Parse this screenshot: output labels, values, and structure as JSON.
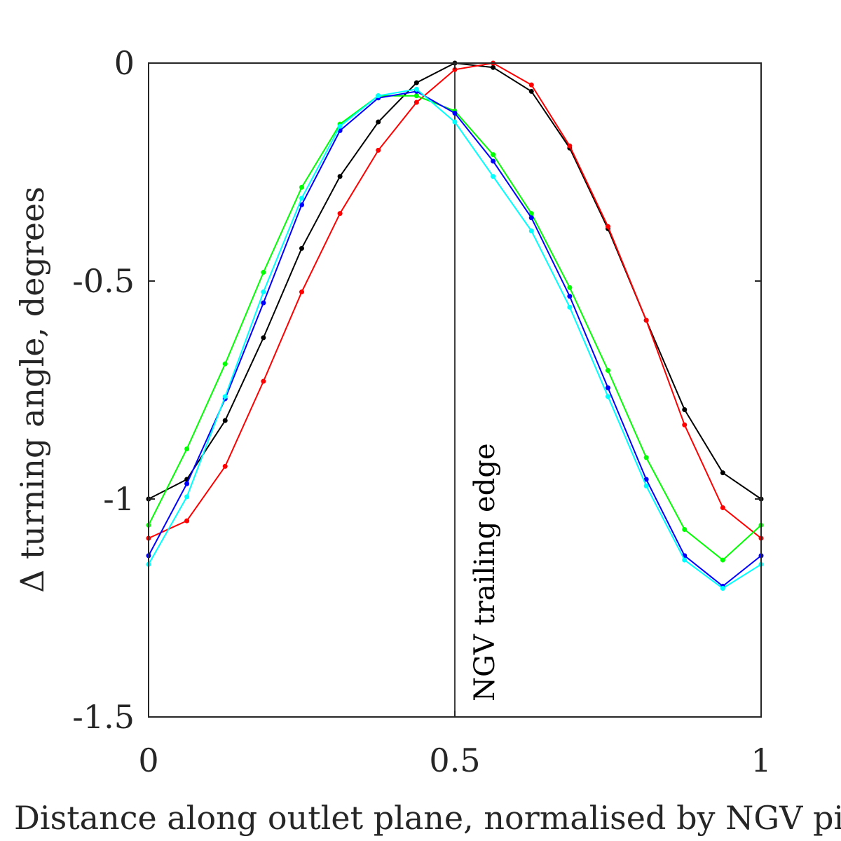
{
  "chart_data": {
    "type": "line",
    "xlabel": "Distance along outlet plane, normalised by NGV pitch",
    "ylabel": "Δ turning angle, degrees",
    "xlim": [
      0,
      1
    ],
    "ylim": [
      -1.5,
      0
    ],
    "xticks": [
      0,
      0.5,
      1
    ],
    "yticks": [
      0,
      -0.5,
      -1,
      -1.5
    ],
    "xtick_labels": [
      "0",
      "0.5",
      "1"
    ],
    "ytick_labels": [
      "0",
      "-0.5",
      "-1",
      "-1.5"
    ],
    "grid": false,
    "x": [
      0,
      0.0625,
      0.125,
      0.1875,
      0.25,
      0.3125,
      0.375,
      0.4375,
      0.5,
      0.5625,
      0.625,
      0.6875,
      0.75,
      0.8125,
      0.875,
      0.9375,
      1
    ],
    "series": [
      {
        "color": "#000000",
        "values": [
          -1.0,
          -0.955,
          -0.82,
          -0.63,
          -0.425,
          -0.26,
          -0.135,
          -0.045,
          0.0,
          -0.01,
          -0.065,
          -0.195,
          -0.38,
          -0.59,
          -0.795,
          -0.94,
          -1.0
        ]
      },
      {
        "color": "#ff0000",
        "values": [
          -1.09,
          -1.05,
          -0.925,
          -0.73,
          -0.525,
          -0.345,
          -0.2,
          -0.09,
          -0.015,
          0.0,
          -0.05,
          -0.19,
          -0.375,
          -0.59,
          -0.83,
          -1.02,
          -1.09
        ]
      },
      {
        "color": "#00ff00",
        "values": [
          -1.06,
          -0.885,
          -0.69,
          -0.48,
          -0.285,
          -0.14,
          -0.075,
          -0.075,
          -0.11,
          -0.21,
          -0.345,
          -0.515,
          -0.705,
          -0.905,
          -1.07,
          -1.14,
          -1.06
        ]
      },
      {
        "color": "#0000ff",
        "values": [
          -1.13,
          -0.965,
          -0.77,
          -0.55,
          -0.325,
          -0.155,
          -0.08,
          -0.065,
          -0.115,
          -0.225,
          -0.355,
          -0.535,
          -0.745,
          -0.955,
          -1.13,
          -1.2,
          -1.13
        ]
      },
      {
        "color": "#00ffff",
        "values": [
          -1.15,
          -0.995,
          -0.765,
          -0.525,
          -0.31,
          -0.145,
          -0.075,
          -0.06,
          -0.135,
          -0.26,
          -0.385,
          -0.56,
          -0.765,
          -0.97,
          -1.14,
          -1.205,
          -1.15
        ]
      }
    ],
    "annotations": [
      {
        "text": "NGV trailing edge",
        "x": 0.5
      }
    ]
  },
  "colors": {
    "axis": "#262626",
    "annotation_line": "#000000"
  }
}
